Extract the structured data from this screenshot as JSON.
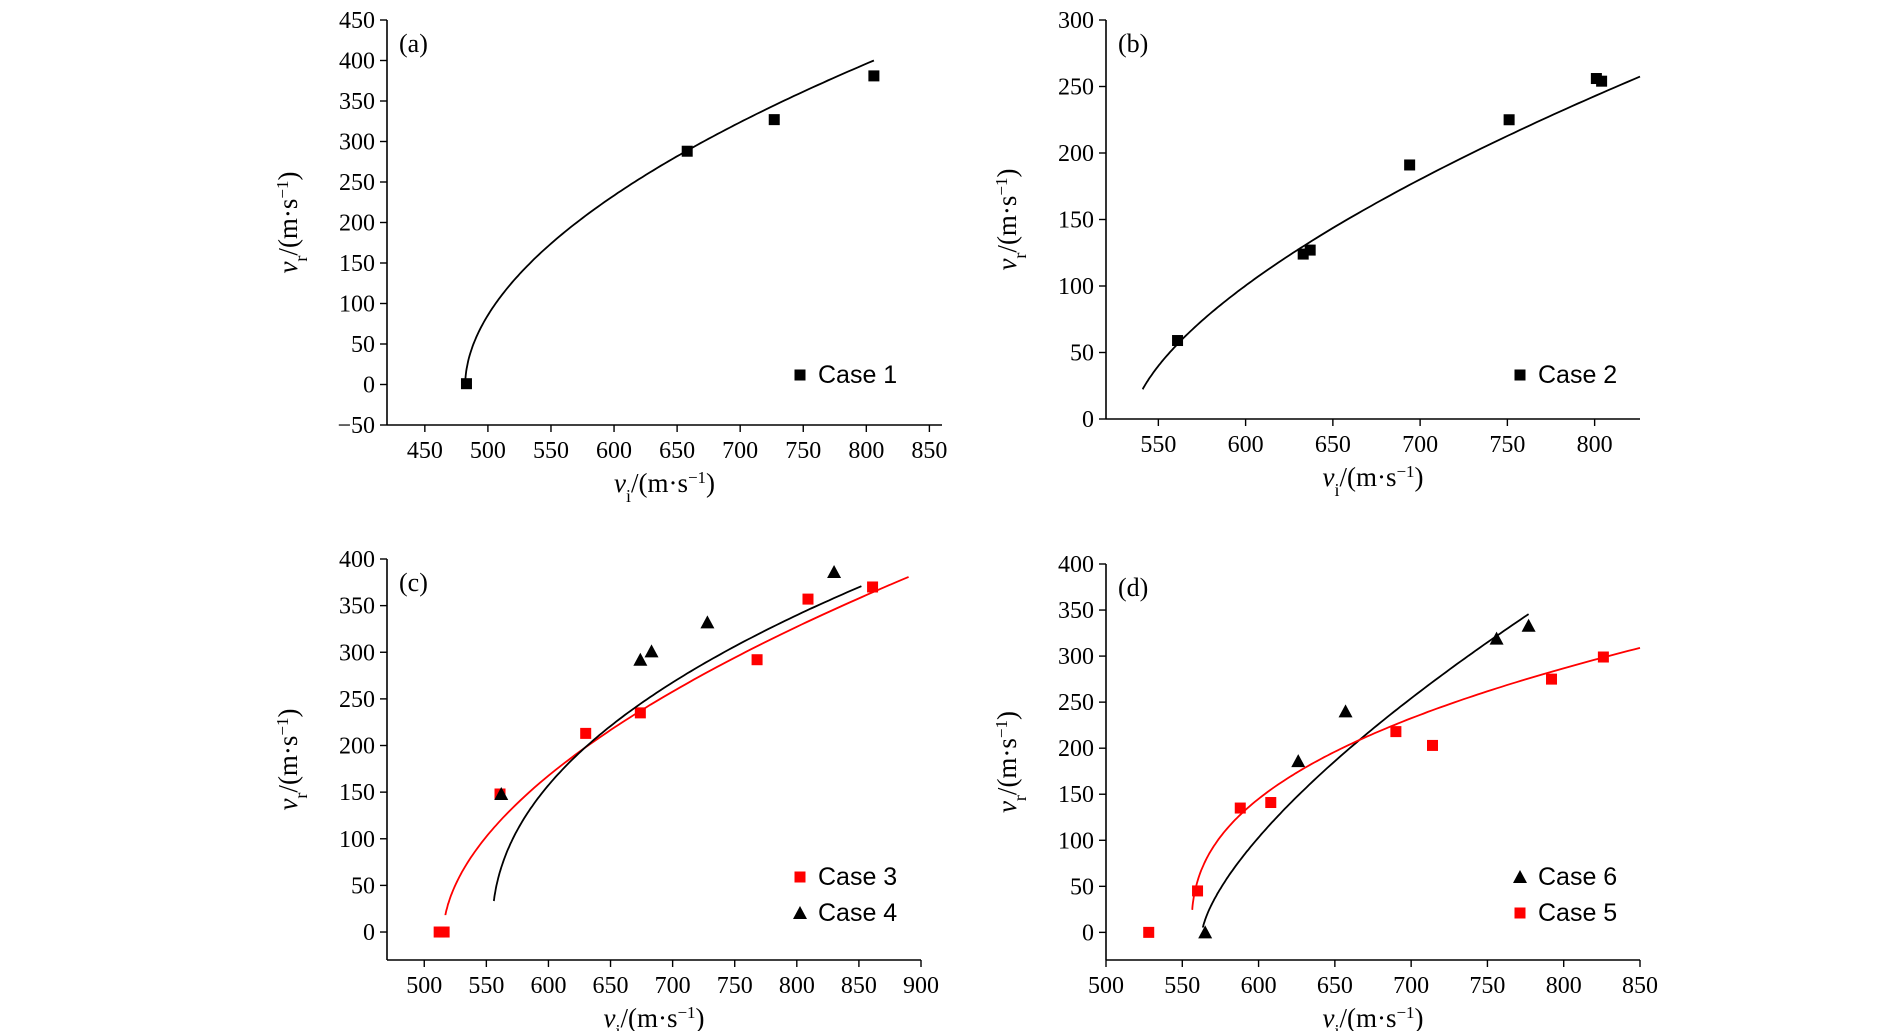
{
  "colors": {
    "black": "#000000",
    "red": "#ff0000"
  },
  "chart_data": [
    {
      "type": "scatter",
      "panel_label": "(a)",
      "xlabel": {
        "sym": "v",
        "sub": "i",
        "unit": "/(m·s",
        "exp": "−1",
        "close": ")"
      },
      "ylabel": {
        "sym": "v",
        "sub": "r",
        "unit": "/(m·s",
        "exp": "−1",
        "close": ")"
      },
      "xlim": [
        420,
        860
      ],
      "ylim": [
        -50,
        450
      ],
      "xticks": [
        450,
        500,
        550,
        600,
        650,
        700,
        750,
        800,
        850
      ],
      "yticks": [
        -50,
        0,
        50,
        100,
        150,
        200,
        250,
        300,
        350,
        400,
        450
      ],
      "xtick_labels": [
        "450",
        "500",
        "550",
        "600",
        "650",
        "700",
        "750",
        "800",
        "850"
      ],
      "ytick_labels": [
        "−50",
        "0",
        "50",
        "100",
        "150",
        "200",
        "250",
        "300",
        "350",
        "400",
        "450"
      ],
      "series": [
        {
          "name": "Case 1",
          "color": "#000000",
          "marker": "square",
          "points": [
            [
              483,
              1
            ],
            [
              658,
              288
            ],
            [
              727,
              327
            ],
            [
              806,
              381
            ]
          ],
          "fit": {
            "x0": 482,
            "x1": 806,
            "k": 18.31,
            "p": 0.5335
          }
        }
      ]
    },
    {
      "type": "scatter",
      "panel_label": "(b)",
      "xlabel": {
        "sym": "v",
        "sub": "i",
        "unit": "/(m·s",
        "exp": "−1",
        "close": ")"
      },
      "ylabel": {
        "sym": "v",
        "sub": "r",
        "unit": "/(m·s",
        "exp": "−1",
        "close": ")"
      },
      "xlim": [
        520,
        826
      ],
      "ylim": [
        0,
        300
      ],
      "xticks": [
        550,
        600,
        650,
        700,
        750,
        800
      ],
      "yticks": [
        0,
        50,
        100,
        150,
        200,
        250,
        300
      ],
      "xtick_labels": [
        "550",
        "600",
        "650",
        "700",
        "750",
        "800"
      ],
      "ytick_labels": [
        "0",
        "50",
        "100",
        "150",
        "200",
        "250",
        "300"
      ],
      "series": [
        {
          "name": "Case 2",
          "color": "#000000",
          "marker": "square",
          "points": [
            [
              561,
              59
            ],
            [
              633,
              124
            ],
            [
              637,
              127
            ],
            [
              694,
              191
            ],
            [
              751,
              225
            ],
            [
              801,
              256
            ],
            [
              804,
              254
            ]
          ],
          "fit": {
            "x0": 541,
            "x1": 826,
            "k": 7.26,
            "p": 0.629,
            "x0off": 535
          }
        }
      ]
    },
    {
      "type": "scatter",
      "panel_label": "(c)",
      "xlabel": {
        "sym": "v",
        "sub": "i",
        "unit": "/(m·s",
        "exp": "−1",
        "close": ")"
      },
      "ylabel": {
        "sym": "v",
        "sub": "r",
        "unit": "/(m·s",
        "exp": "−1",
        "close": ")"
      },
      "xlim": [
        470,
        900
      ],
      "ylim": [
        -30,
        400
      ],
      "xticks": [
        500,
        550,
        600,
        650,
        700,
        750,
        800,
        850,
        900
      ],
      "yticks": [
        0,
        50,
        100,
        150,
        200,
        250,
        300,
        350,
        400
      ],
      "xtick_labels": [
        "500",
        "550",
        "600",
        "650",
        "700",
        "750",
        "800",
        "850",
        "900"
      ],
      "ytick_labels": [
        "0",
        "50",
        "100",
        "150",
        "200",
        "250",
        "300",
        "350",
        "400"
      ],
      "series": [
        {
          "name": "Case 3",
          "color": "#ff0000",
          "marker": "square",
          "points": [
            [
              512,
              0
            ],
            [
              516,
              0
            ],
            [
              561,
              148
            ],
            [
              630,
              213
            ],
            [
              674,
              235
            ],
            [
              768,
              292
            ],
            [
              809,
              357
            ],
            [
              861,
              370
            ]
          ],
          "fit": {
            "x0": 517,
            "x1": 890,
            "k": 14.52,
            "p": 0.5513,
            "x0off": 515.5
          }
        },
        {
          "name": "Case 4",
          "color": "#000000",
          "marker": "triangle",
          "points": [
            [
              562,
              148
            ],
            [
              674,
              292
            ],
            [
              683,
              301
            ],
            [
              728,
              332
            ],
            [
              830,
              386
            ]
          ],
          "fit": {
            "x0": 556,
            "x1": 852,
            "k": 27.61,
            "p": 0.4561,
            "x0off": 554.5
          }
        }
      ]
    },
    {
      "type": "scatter",
      "panel_label": "(d)",
      "xlabel": {
        "sym": "v",
        "sub": "i",
        "unit": "/(m·s",
        "exp": "−1",
        "close": ")"
      },
      "ylabel": {
        "sym": "v",
        "sub": "r",
        "unit": "/(m·s",
        "exp": "−1",
        "close": ")"
      },
      "xlim": [
        500,
        850
      ],
      "ylim": [
        -30,
        400
      ],
      "xticks": [
        500,
        550,
        600,
        650,
        700,
        750,
        800,
        850
      ],
      "yticks": [
        0,
        50,
        100,
        150,
        200,
        250,
        300,
        350,
        400
      ],
      "xtick_labels": [
        "500",
        "550",
        "600",
        "650",
        "700",
        "750",
        "800",
        "850"
      ],
      "ytick_labels": [
        "0",
        "50",
        "100",
        "150",
        "200",
        "250",
        "300",
        "350",
        "400"
      ],
      "series": [
        {
          "name": "Case 6",
          "color": "#000000",
          "marker": "triangle",
          "points": [
            [
              565,
              0
            ],
            [
              626,
              186
            ],
            [
              657,
              240
            ],
            [
              756,
              319
            ],
            [
              777,
              333
            ]
          ],
          "fit": {
            "x0": 563.5,
            "x1": 777,
            "k": 8.56,
            "p": 0.6892,
            "x0off": 563
          }
        },
        {
          "name": "Case 5",
          "color": "#ff0000",
          "marker": "square",
          "points": [
            [
              528,
              0
            ],
            [
              560,
              45
            ],
            [
              588,
              135
            ],
            [
              608,
              141
            ],
            [
              690,
              218
            ],
            [
              714,
              203
            ],
            [
              792,
              275
            ],
            [
              826,
              299
            ]
          ],
          "fit": {
            "x0": 556.5,
            "x1": 850,
            "k": 32.13,
            "p": 0.3982,
            "x0off": 556
          }
        }
      ]
    }
  ]
}
